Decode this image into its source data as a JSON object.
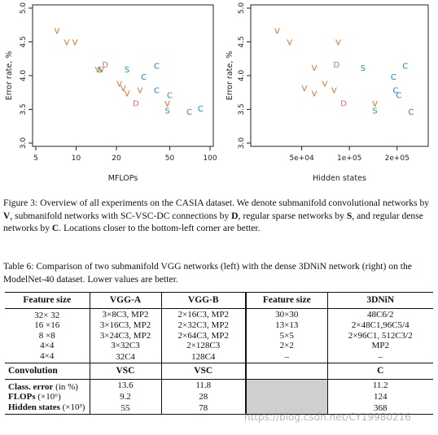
{
  "chart_data": [
    {
      "type": "scatter",
      "xlabel": "MFLOPs",
      "ylabel": "Error rate, %",
      "xscale": "log",
      "xlim": [
        5,
        100
      ],
      "ylim": [
        3.0,
        5.0
      ],
      "xticks": [
        5,
        10,
        20,
        50,
        100
      ],
      "xtick_labels": [
        "5",
        "10",
        "20",
        "50",
        "100"
      ],
      "yticks": [
        3.0,
        3.5,
        4.0,
        4.5,
        5.0
      ],
      "ytick_labels": [
        "3.0",
        "3.5",
        "4.0",
        "4.5",
        "5.0"
      ],
      "series": [
        {
          "name": "V",
          "color": "#e07020",
          "points": [
            [
              7.2,
              4.65
            ],
            [
              8.5,
              4.48
            ],
            [
              9.8,
              4.48
            ],
            [
              14.5,
              4.08
            ],
            [
              15.5,
              4.08
            ],
            [
              21,
              3.87
            ],
            [
              22.5,
              3.8
            ],
            [
              24,
              3.72
            ],
            [
              30,
              3.77
            ],
            [
              48,
              3.57
            ]
          ]
        },
        {
          "name": "D",
          "color": "#e0608a",
          "points": [
            [
              16.5,
              4.15
            ],
            [
              28,
              3.58
            ]
          ]
        },
        {
          "name": "S",
          "color": "#20a080",
          "points": [
            [
              15,
              4.08
            ],
            [
              24,
              4.08
            ],
            [
              48,
              3.47
            ]
          ]
        },
        {
          "name": "C",
          "color": "#1c7fd4",
          "points": [
            [
              32,
              3.97
            ],
            [
              40,
              4.13
            ],
            [
              40,
              3.77
            ],
            [
              50,
              3.7
            ],
            [
              70,
              3.45
            ],
            [
              85,
              3.5
            ]
          ]
        }
      ]
    },
    {
      "type": "scatter",
      "xlabel": "Hidden states",
      "ylabel": "Error rate, %",
      "xscale": "log",
      "xlim": [
        25000,
        300000
      ],
      "ylim": [
        3.0,
        5.0
      ],
      "xticks": [
        50000,
        100000,
        200000
      ],
      "xtick_labels": [
        "5e+04",
        "1e+05",
        "2e+05"
      ],
      "yticks": [
        3.0,
        3.5,
        4.0,
        4.5,
        5.0
      ],
      "ytick_labels": [
        "3.0",
        "3.5",
        "4.0",
        "4.5",
        "5.0"
      ],
      "series": [
        {
          "name": "V",
          "color": "#e07020",
          "points": [
            [
              35000,
              4.65
            ],
            [
              42000,
              4.48
            ],
            [
              52000,
              3.8
            ],
            [
              60000,
              3.72
            ],
            [
              60000,
              4.1
            ],
            [
              70000,
              3.87
            ],
            [
              80000,
              3.77
            ],
            [
              85000,
              4.48
            ],
            [
              145000,
              3.57
            ]
          ]
        },
        {
          "name": "D",
          "color": "#e0608a",
          "points": [
            [
              83000,
              4.15
            ],
            [
              92000,
              3.58
            ]
          ]
        },
        {
          "name": "S",
          "color": "#20a080",
          "points": [
            [
              122000,
              4.1
            ],
            [
              145000,
              3.47
            ]
          ]
        },
        {
          "name": "C",
          "color": "#1c7fd4",
          "points": [
            [
              190000,
              3.97
            ],
            [
              196000,
              3.77
            ],
            [
              205000,
              3.7
            ],
            [
              225000,
              4.13
            ],
            [
              245000,
              3.45
            ]
          ]
        }
      ]
    }
  ],
  "fig3_caption": {
    "lead": "Figure 3: Overview of all experiments on the CASIA dataset. We denote submanifold convolutional networks by ",
    "v": "V",
    "t1": ", submanifold networks with SC-VSC-DC connections by ",
    "d": "D",
    "t2": ", regular sparse networks by ",
    "s": "S",
    "t3": ", and regular dense networks by ",
    "c": "C",
    "t4": ". Locations closer to the bottom-left corner are better."
  },
  "table6_caption": "Table 6: Comparison of two submanifold VGG networks (left) with the dense 3DNiN network (right) on the ModelNet-40 dataset. Lower values are better.",
  "table": {
    "headers": [
      "Feature size",
      "VGG-A",
      "VGG-B",
      "Feature size",
      "3DNiN"
    ],
    "rows": [
      [
        "32× 32",
        "3×8C3, MP2",
        "2×16C3, MP2",
        "30×30",
        "48C6/2"
      ],
      [
        "16 ×16",
        "3×16C3, MP2",
        "2×32C3, MP2",
        "13×13",
        "2×48C1,96C5/4"
      ],
      [
        "8 ×8",
        "3×24C3, MP2",
        "2×64C3, MP2",
        "5×5",
        "2×96C1, 512C3/2"
      ],
      [
        "4×4",
        "3×32C3",
        "2×128C3",
        "2×2",
        "MP2"
      ],
      [
        "4×4",
        "32C4",
        "128C4",
        "–",
        "–"
      ]
    ],
    "conv_row": {
      "label": "Convolution",
      "a": "VSC",
      "b": "VSC",
      "d": "C"
    },
    "metrics": [
      {
        "label": "Class. error",
        "unit": "(in %)",
        "a": "13.6",
        "b": "11.8",
        "d": "11.2"
      },
      {
        "label": "FLOPs",
        "unit": "(×10⁶)",
        "a": "9.2",
        "b": "28",
        "d": "124"
      },
      {
        "label": "Hidden states",
        "unit": "(×10³)",
        "a": "55",
        "b": "78",
        "d": "368"
      }
    ]
  },
  "watermark": "https://blog.csdn.net/CY19980216"
}
